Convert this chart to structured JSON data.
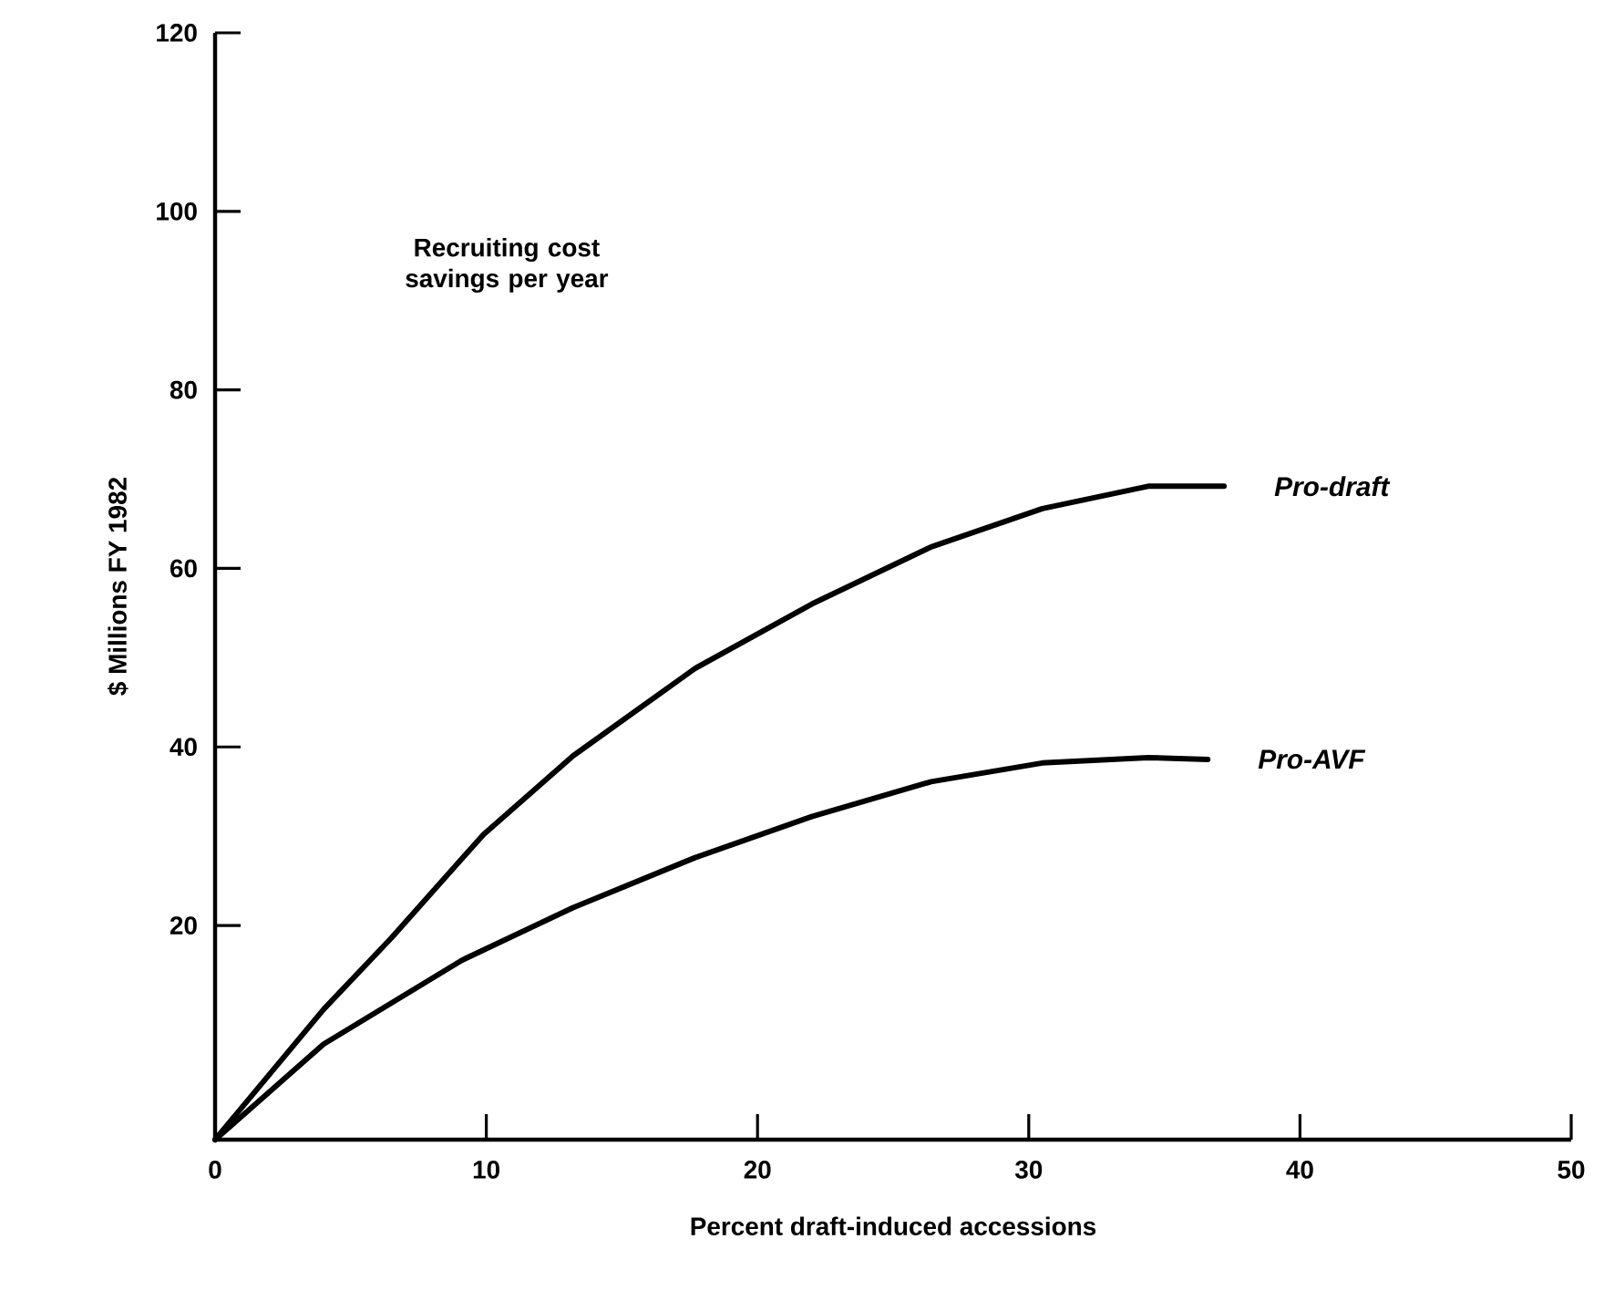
{
  "chart_data": {
    "type": "line",
    "xlabel": "Percent draft-induced accessions",
    "ylabel": "$ Millions FY 1982",
    "annotations": [
      "Recruiting cost savings per year"
    ],
    "xlim": [
      0,
      50
    ],
    "ylim": [
      -4,
      120
    ],
    "xticks": [
      0,
      10,
      20,
      30,
      40,
      50
    ],
    "yticks": [
      20,
      40,
      60,
      80,
      100,
      120
    ],
    "series": [
      {
        "name": "Pro-draft",
        "color": "#000000",
        "x": [
          0,
          4,
          6.5,
          9.9,
          13.2,
          17.7,
          22,
          26.4,
          30.5,
          34.4,
          37.2
        ],
        "values": [
          -4,
          10.6,
          18.6,
          30.2,
          39,
          48.8,
          56,
          62.4,
          66.7,
          69.2,
          69.2
        ]
      },
      {
        "name": "Pro-AVF",
        "color": "#000000",
        "x": [
          0,
          4,
          9.1,
          13.2,
          17.7,
          22,
          26.4,
          30.5,
          34.4,
          36.6
        ],
        "values": [
          -4,
          6.7,
          16.1,
          22,
          27.6,
          32.2,
          36.1,
          38.2,
          38.8,
          38.6
        ]
      }
    ]
  }
}
